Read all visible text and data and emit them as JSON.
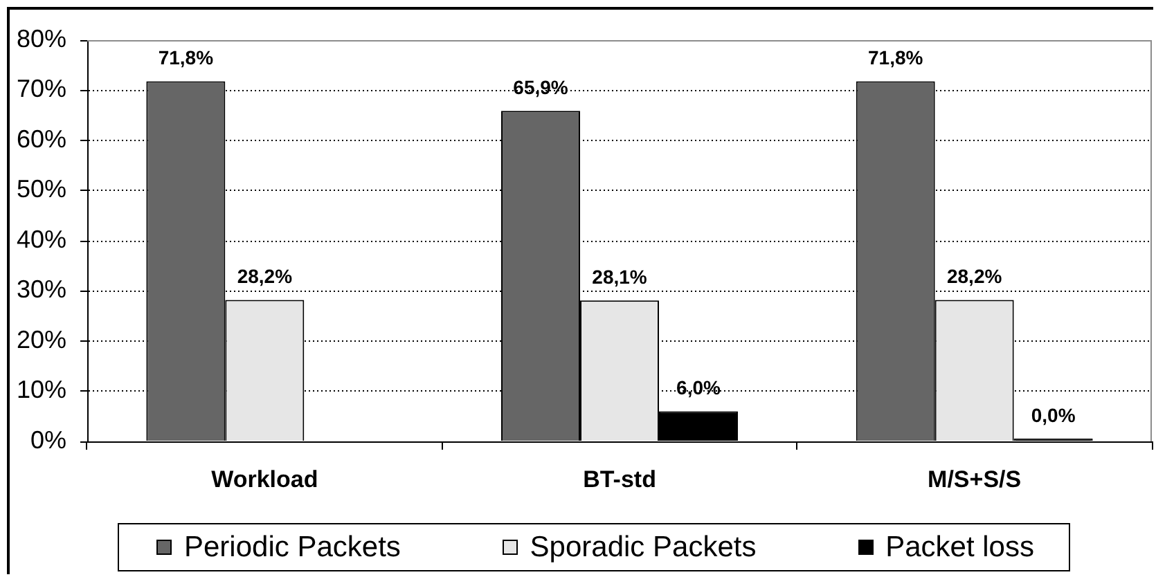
{
  "chart_data": {
    "type": "bar",
    "categories": [
      "Workload",
      "BT-std",
      "M/S+S/S"
    ],
    "series": [
      {
        "name": "Periodic Packets",
        "color": "#666666",
        "values": [
          71.8,
          65.9,
          71.8
        ],
        "value_labels": [
          "71,8%",
          "65,9%",
          "71,8%"
        ]
      },
      {
        "name": "Sporadic Packets",
        "color": "#e6e6e6",
        "values": [
          28.2,
          28.1,
          28.2
        ],
        "value_labels": [
          "28,2%",
          "28,1%",
          "28,2%"
        ]
      },
      {
        "name": "Packet loss",
        "color": "#000000",
        "values": [
          null,
          6.0,
          0.0
        ],
        "value_labels": [
          null,
          "6,0%",
          "0,0%"
        ]
      }
    ],
    "ylim": [
      0,
      80
    ],
    "yticks": [
      {
        "value": 0,
        "label": "0%"
      },
      {
        "value": 10,
        "label": "10%"
      },
      {
        "value": 20,
        "label": "20%"
      },
      {
        "value": 30,
        "label": "30%"
      },
      {
        "value": 40,
        "label": "40%"
      },
      {
        "value": 50,
        "label": "50%"
      },
      {
        "value": 60,
        "label": "60%"
      },
      {
        "value": 70,
        "label": "70%"
      },
      {
        "value": 80,
        "label": "80%"
      }
    ],
    "grid": "y",
    "legend": "bottom"
  }
}
